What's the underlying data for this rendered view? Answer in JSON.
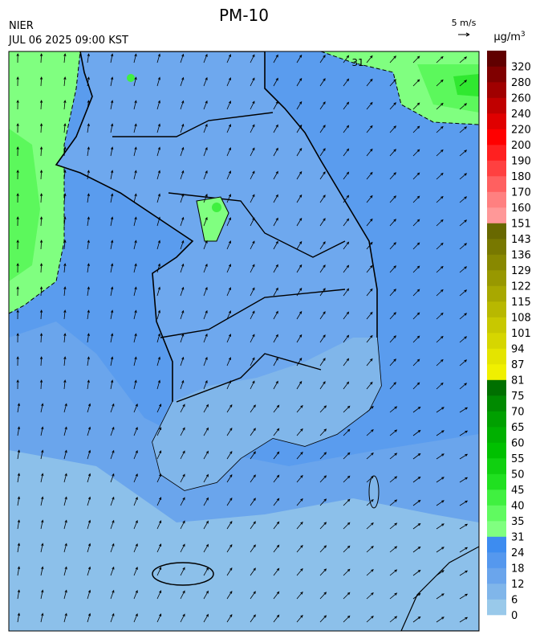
{
  "header": {
    "title": "PM-10",
    "agency": "NIER",
    "datetime": "JUL 06 2025 09:00 KST",
    "wind_scale": "5 m/s"
  },
  "map": {
    "contour_label": "31"
  },
  "legend": {
    "unit": {
      "base": "μg/m",
      "sup": "3"
    },
    "ticks": [
      0,
      6,
      12,
      18,
      24,
      31,
      35,
      40,
      45,
      50,
      55,
      60,
      65,
      70,
      75,
      81,
      87,
      94,
      101,
      108,
      115,
      122,
      129,
      136,
      143,
      151,
      160,
      170,
      180,
      190,
      200,
      220,
      240,
      260,
      280,
      320
    ],
    "colors": [
      "#99c9ea",
      "#80b6ea",
      "#6aa5ec",
      "#5598ee",
      "#3d8cf0",
      "#80ff80",
      "#60fa60",
      "#40f040",
      "#20e020",
      "#10d010",
      "#00c000",
      "#00b000",
      "#00a000",
      "#008a00",
      "#007000",
      "#f0f000",
      "#e4e400",
      "#d6d600",
      "#c8c800",
      "#b8b800",
      "#a8a800",
      "#989800",
      "#888800",
      "#787800",
      "#686800",
      "#ff9898",
      "#ff8080",
      "#ff6060",
      "#ff4040",
      "#ff2020",
      "#ff0000",
      "#e00000",
      "#c00000",
      "#a00000",
      "#800000",
      "#600000"
    ]
  }
}
